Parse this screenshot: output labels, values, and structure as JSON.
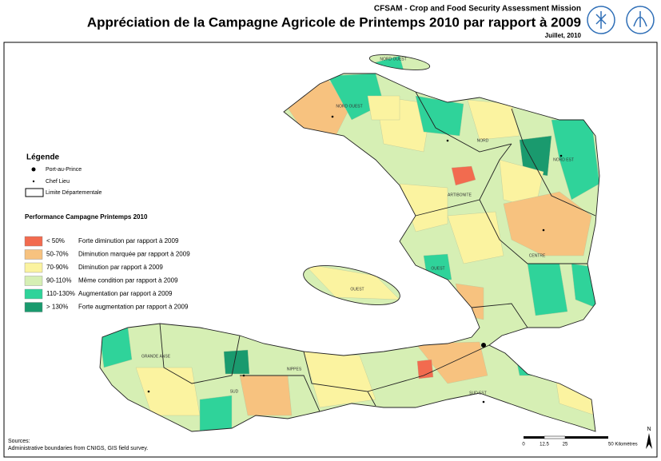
{
  "header": {
    "mission": "CFSAM - Crop and Food Security Assessment Mission",
    "title": "Appréciation de la Campagne Agricole de Printemps 2010 par rapport à 2009",
    "date": "Juillet, 2010"
  },
  "legend": {
    "title": "Légende",
    "capital": "Port-au-Prince",
    "chef_lieu": "Chef Lieu",
    "boundary": "Limite Départementale",
    "performance_title": "Performance Campagne Printemps 2010",
    "classes": [
      {
        "range": "< 50%",
        "description": "Forte diminution par rapport à 2009",
        "color": "#f26b4f"
      },
      {
        "range": "50-70%",
        "description": "Diminution marquée par rapport à 2009",
        "color": "#f7c27f"
      },
      {
        "range": "70-90%",
        "description": "Diminution par rapport à 2009",
        "color": "#fbf3a0"
      },
      {
        "range": "90-110%",
        "description": "Même condition par rapport à 2009",
        "color": "#d6efb4"
      },
      {
        "range": "110-130%",
        "description": "Augmentation par rapport à 2009",
        "color": "#2fd39a"
      },
      {
        "range": "> 130%",
        "description": "Forte augmentation par rapport à 2009",
        "color": "#1a9a6e"
      }
    ]
  },
  "departments": [
    "NORD OUEST",
    "NORD OUEST",
    "NORD",
    "NORD EST",
    "ARTIBONITE",
    "CENTRE",
    "OUEST",
    "OUEST",
    "GRANDE ANSE",
    "NIPPES",
    "SUD",
    "SUD EST"
  ],
  "sources": {
    "title": "Sources:",
    "text": "Administrative boundaries from CNIGS, GIS field survey."
  },
  "scale_bar": {
    "labels": [
      "0",
      "12.5",
      "25",
      "50 Kilomètres"
    ]
  },
  "north": "N"
}
